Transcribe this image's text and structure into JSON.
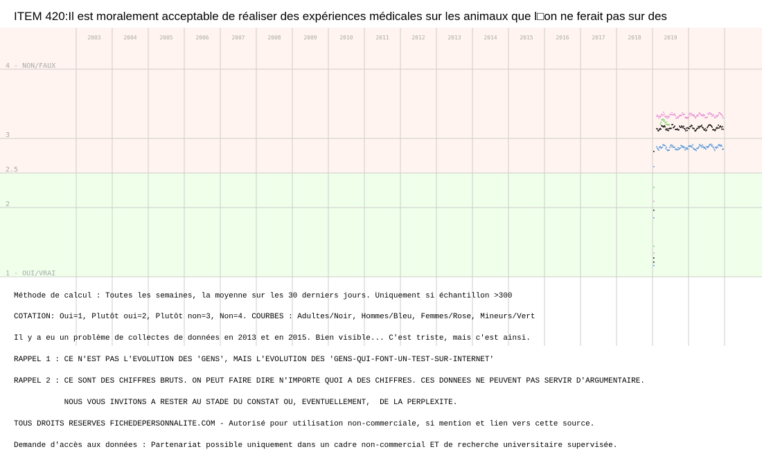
{
  "title": "ITEM 420:Il est moralement acceptable de réaliser des expériences médicales sur les animaux que l□on ne ferait pas sur des",
  "colors": {
    "band_top": "#fff4ef",
    "band_bottom": "#efffea",
    "grid": "#cccccc",
    "adultes": "#000000",
    "hommes": "#4a90d9",
    "femmes": "#e88ad6",
    "mineurs": "#6fd25a"
  },
  "chart_data": {
    "type": "scatter",
    "title": "ITEM 420:Il est moralement acceptable de réaliser des expériences médicales sur les animaux que l□on ne ferait pas sur des",
    "x_ticks": [
      "2003",
      "2004",
      "2005",
      "2006",
      "2007",
      "2008",
      "2009",
      "2010",
      "2011",
      "2012",
      "2013",
      "2014",
      "2015",
      "2016",
      "2017",
      "2018",
      "2019"
    ],
    "y_ticks": [
      {
        "value": 4,
        "label": "4 - NON/FAUX"
      },
      {
        "value": 3,
        "label": "3"
      },
      {
        "value": 2.5,
        "label": "2.5"
      },
      {
        "value": 2,
        "label": "2"
      },
      {
        "value": 1,
        "label": "1 - OUI/VRAI"
      }
    ],
    "ylim": [
      1,
      4.2
    ],
    "grid": true,
    "series": [
      {
        "name": "Adultes",
        "color": "#000000",
        "start": 2018.1,
        "end": 2019.95,
        "base": 3.16,
        "outliers": [
          [
            2018.02,
            2.82
          ],
          [
            2018.02,
            1.97
          ],
          [
            2018.02,
            1.28
          ],
          [
            2018.02,
            1.22
          ]
        ]
      },
      {
        "name": "Hommes",
        "color": "#4a90d9",
        "start": 2018.1,
        "end": 2019.95,
        "base": 2.88,
        "outliers": [
          [
            2018.02,
            2.6
          ],
          [
            2018.02,
            1.86
          ],
          [
            2018.02,
            1.17
          ]
        ]
      },
      {
        "name": "Femmes",
        "color": "#e88ad6",
        "start": 2018.1,
        "end": 2019.95,
        "base": 3.34,
        "outliers": [
          [
            2018.02,
            2.1
          ],
          [
            2018.02,
            1.35
          ]
        ]
      },
      {
        "name": "Mineurs",
        "color": "#6fd25a",
        "start": 2018.2,
        "end": 2018.45,
        "base": 3.24,
        "outliers": [
          [
            2018.02,
            2.3
          ],
          [
            2018.02,
            1.45
          ]
        ]
      }
    ]
  },
  "notes": [
    "Méthode de calcul : Toutes les semaines, la moyenne sur les 30 derniers jours. Uniquement si échantillon >300",
    "COTATION: Oui=1, Plutôt oui=2, Plutôt non=3, Non=4. COURBES : Adultes/Noir, Hommes/Bleu, Femmes/Rose, Mineurs/Vert",
    "Il y a eu un problème de collectes de données en 2013 et en 2015. Bien visible... C'est triste, mais c'est ainsi.",
    "RAPPEL 1 : CE N'EST PAS L'EVOLUTION DES 'GENS', MAIS L'EVOLUTION DES 'GENS-QUI-FONT-UN-TEST-SUR-INTERNET'",
    "RAPPEL 2 : CE SONT DES CHIFFRES BRUTS. ON PEUT FAIRE DIRE N'IMPORTE QUOI A DES CHIFFRES. CES DONNEES NE PEUVENT PAS SERVIR D'ARGUMENTAIRE.",
    "           NOUS VOUS INVITONS A RESTER AU STADE DU CONSTAT OU, EVENTUELLEMENT,  DE LA PERPLEXITE.",
    "TOUS DROITS RESERVES FICHEDEPERSONNALITE.COM - Autorisé pour utilisation non-commerciale, si mention et lien vers cette source.",
    "Demande d'accès aux données : Partenariat possible uniquement dans un cadre non-commercial ET de recherche universitaire supervisée."
  ]
}
